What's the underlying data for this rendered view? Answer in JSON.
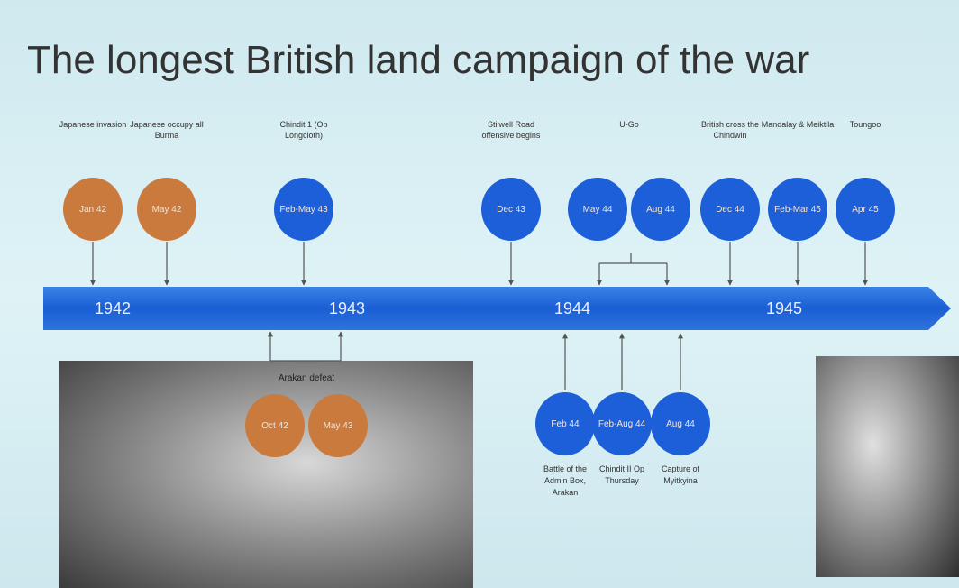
{
  "title": "The longest British land campaign of the war",
  "years": [
    "1942",
    "1943",
    "1944",
    "1945"
  ],
  "top_events": [
    {
      "label": "Japanese invasion",
      "dates": [
        "Jan 42"
      ],
      "color": "#c97a3c"
    },
    {
      "label": "Japanese occupy all Burma",
      "dates": [
        "May 42"
      ],
      "color": "#c97a3c"
    },
    {
      "label": "Chindit 1 (Op Longcloth)",
      "dates": [
        "Feb-May 43"
      ],
      "color": "#1c5fd8"
    },
    {
      "label": "Stilwell Road offensive begins",
      "dates": [
        "Dec 43"
      ],
      "color": "#1c5fd8"
    },
    {
      "label": "U-Go",
      "dates": [
        "May 44",
        "Aug 44"
      ],
      "color": "#1c5fd8"
    },
    {
      "label": "British cross the Chindwin",
      "dates": [
        "Dec 44"
      ],
      "color": "#1c5fd8"
    },
    {
      "label": "Mandalay & Meiktila",
      "dates": [
        "Feb-Mar 45"
      ],
      "color": "#1c5fd8"
    },
    {
      "label": "Toungoo",
      "dates": [
        "Apr 45"
      ],
      "color": "#1c5fd8"
    }
  ],
  "bottom_events": [
    {
      "label": "Battle of the Admin Box, Arakan",
      "date": "Feb 44",
      "color": "#1c5fd8"
    },
    {
      "label": "Chindit II Op Thursday",
      "date": "Feb-Aug 44",
      "color": "#1c5fd8"
    },
    {
      "label": "Capture of Myitkyina",
      "date": "Aug 44",
      "color": "#1c5fd8"
    }
  ],
  "arakan": {
    "label": "Arakan defeat",
    "dates": [
      "Oct 42",
      "May 43"
    ],
    "color": "#c97a3c"
  }
}
